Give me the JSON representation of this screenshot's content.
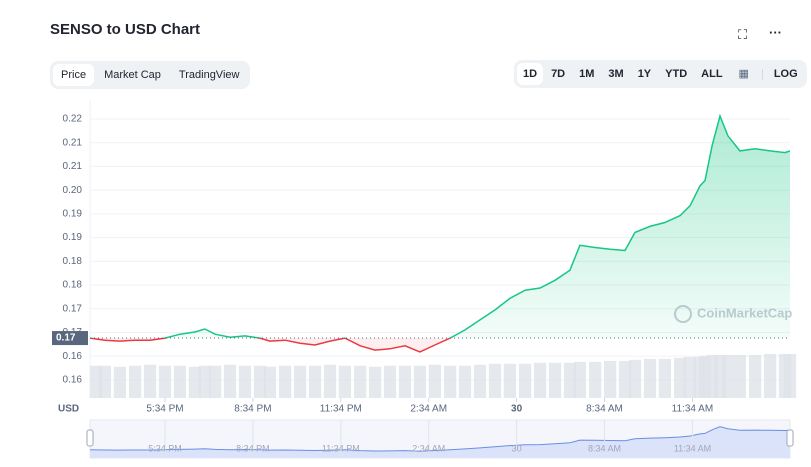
{
  "header": {
    "title": "SENSO to USD Chart"
  },
  "tabs": [
    "Price",
    "Market Cap",
    "TradingView"
  ],
  "ranges": [
    "1D",
    "7D",
    "1M",
    "3M",
    "1Y",
    "YTD",
    "ALL"
  ],
  "log_button": "LOG",
  "chart_data": {
    "type": "area",
    "y_unit": "USD",
    "watermark": "CoinMarketCap",
    "up_color": "#16c784",
    "down_color": "#ea3943",
    "grid": true,
    "current_price": {
      "value": 0.1657,
      "label": "0.17"
    },
    "x": [
      0,
      0.51,
      1.02,
      1.54,
      2.05,
      2.56,
      3.07,
      3.58,
      3.92,
      4.27,
      4.78,
      5.29,
      5.8,
      6.14,
      6.66,
      7.17,
      7.68,
      8.19,
      8.7,
      9.22,
      9.73,
      10.24,
      10.75,
      11.26,
      11.77,
      12.29,
      12.8,
      13.31,
      13.82,
      14.33,
      14.85,
      15.36,
      15.87,
      16.38,
      16.72,
      17.24,
      17.75,
      18.26,
      18.6,
      19.11,
      19.62,
      20.14,
      20.48,
      20.82,
      20.99,
      21.23,
      21.5,
      21.77,
      22.18,
      22.7,
      23.21,
      23.72,
      23.89
    ],
    "values": [
      0.1657,
      0.1652,
      0.165,
      0.1652,
      0.1652,
      0.1657,
      0.1666,
      0.1671,
      0.1678,
      0.1666,
      0.1659,
      0.1662,
      0.1657,
      0.165,
      0.1652,
      0.1645,
      0.1641,
      0.165,
      0.1657,
      0.1639,
      0.1629,
      0.1632,
      0.1639,
      0.1625,
      0.1641,
      0.1657,
      0.1676,
      0.1699,
      0.1722,
      0.1749,
      0.1768,
      0.1773,
      0.1791,
      0.1814,
      0.1872,
      0.1867,
      0.1863,
      0.186,
      0.1902,
      0.1916,
      0.1925,
      0.1941,
      0.1964,
      0.201,
      0.2022,
      0.2103,
      0.2172,
      0.2126,
      0.2091,
      0.2096,
      0.2091,
      0.2087,
      0.2091
    ],
    "volume": [
      33,
      33,
      32,
      33,
      34,
      33,
      33,
      32,
      33,
      33,
      34,
      33,
      33,
      32,
      33,
      33,
      33,
      34,
      33,
      33,
      32,
      33,
      33,
      33,
      34,
      33,
      33,
      34,
      35,
      35,
      35,
      36,
      36,
      36,
      37,
      37,
      38,
      38,
      39,
      40,
      40,
      41,
      42,
      42,
      43,
      44,
      44,
      44,
      44,
      44,
      45,
      45,
      45
    ],
    "xlim": [
      0,
      23.89
    ],
    "ylim": [
      0.1518,
      0.2209
    ],
    "xticks": [
      {
        "value": 2.56,
        "label": "5:34 PM"
      },
      {
        "value": 5.56,
        "label": "8:34 PM"
      },
      {
        "value": 8.56,
        "label": "11:34 PM"
      },
      {
        "value": 11.56,
        "label": "2:34 AM"
      },
      {
        "value": 14.56,
        "label": "30"
      },
      {
        "value": 17.56,
        "label": "8:34 AM"
      },
      {
        "value": 20.56,
        "label": "11:34 AM"
      }
    ],
    "yticks": [
      {
        "value": 0.156,
        "label": "0.16"
      },
      {
        "value": 0.1615,
        "label": "0.16"
      },
      {
        "value": 0.167,
        "label": "0.17"
      },
      {
        "value": 0.1725,
        "label": "0.17"
      },
      {
        "value": 0.178,
        "label": "0.18"
      },
      {
        "value": 0.1835,
        "label": "0.18"
      },
      {
        "value": 0.189,
        "label": "0.19"
      },
      {
        "value": 0.1945,
        "label": "0.19"
      },
      {
        "value": 0.2,
        "label": "0.20"
      },
      {
        "value": 0.2055,
        "label": "0.21"
      },
      {
        "value": 0.211,
        "label": "0.21"
      },
      {
        "value": 0.2165,
        "label": "0.22"
      }
    ]
  }
}
